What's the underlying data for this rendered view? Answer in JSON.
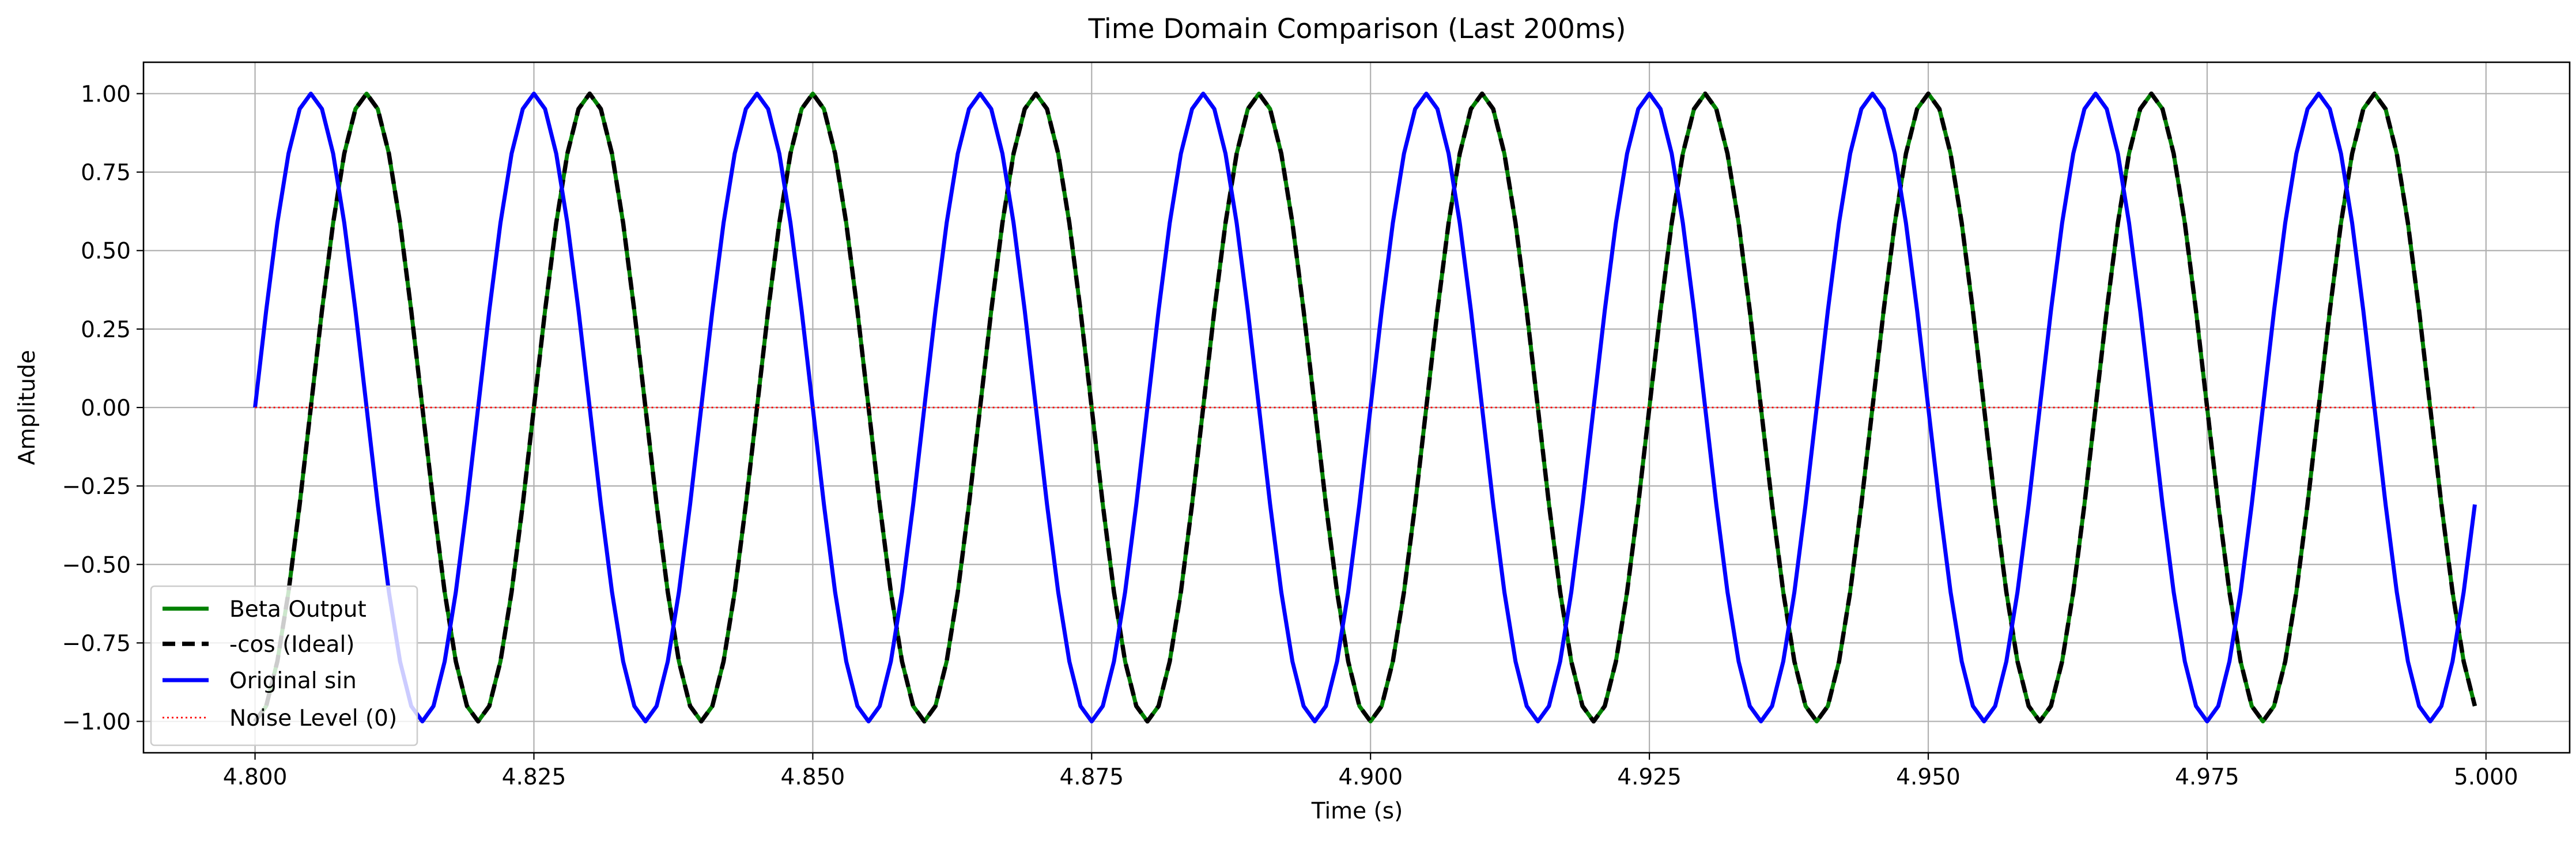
{
  "chart_data": {
    "type": "line",
    "title": "Time Domain Comparison (Last 200ms)",
    "xlabel": "Time (s)",
    "ylabel": "Amplitude",
    "xlim": [
      4.79,
      5.0075
    ],
    "ylim": [
      -1.1,
      1.1
    ],
    "x_ticks": [
      4.8,
      4.825,
      4.85,
      4.875,
      4.9,
      4.925,
      4.95,
      4.975,
      5.0
    ],
    "x_tick_labels": [
      "4.800",
      "4.825",
      "4.850",
      "4.875",
      "4.900",
      "4.925",
      "4.950",
      "4.975",
      "5.000"
    ],
    "y_ticks": [
      1.0,
      0.75,
      0.5,
      0.25,
      0.0,
      -0.25,
      -0.5,
      -0.75,
      -1.0
    ],
    "y_tick_labels": [
      "1.00",
      "0.75",
      "0.50",
      "0.25",
      "0.00",
      "−0.25",
      "−0.50",
      "−0.75",
      "−1.00"
    ],
    "grid": true,
    "legend_position": "lower-left",
    "signal": {
      "frequency_hz": 50,
      "sample_interval_s": 0.001,
      "t_start": 4.8,
      "t_end": 4.999
    },
    "series": [
      {
        "name": "Beta Output",
        "function": "-cos",
        "color": "#008000",
        "style": "solid"
      },
      {
        "name": "-cos (Ideal)",
        "function": "-cos",
        "color": "#000000",
        "style": "dashed"
      },
      {
        "name": "Original sin",
        "function": "sin",
        "color": "#0000ff",
        "style": "solid"
      },
      {
        "name": "Noise Level (0)",
        "function": "zero",
        "color": "#ff0000",
        "style": "dotted"
      }
    ]
  }
}
